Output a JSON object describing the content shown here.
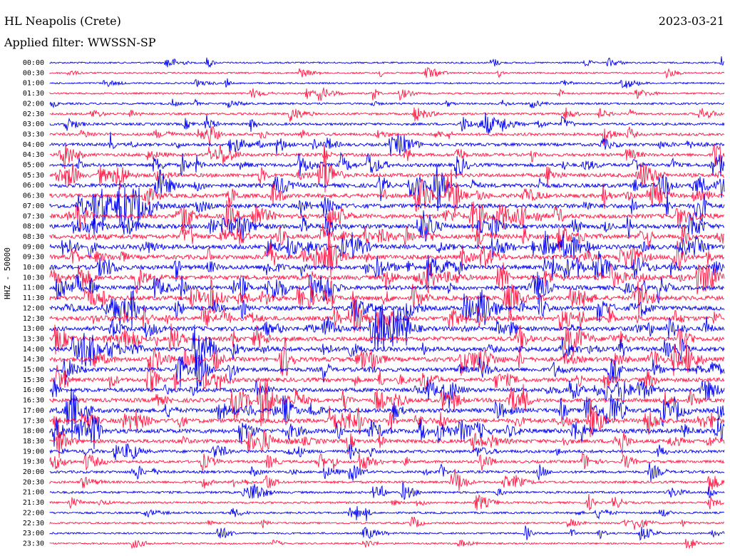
{
  "header": {
    "station": "HL Neapolis (Crete)",
    "date": "2023-03-21",
    "filter": "Applied filter: WWSSN-SP"
  },
  "colors": {
    "trace_a": "#0000ee",
    "trace_b": "#ff1744",
    "baseline": "#0000ee"
  },
  "chart_data": {
    "type": "line",
    "title": "HL Neapolis (Crete)",
    "subtitle": "Applied filter: WWSSN-SP",
    "ylabel": "HHZ - 50000",
    "xlabel": "",
    "date": "2023-03-21",
    "grid": false,
    "legend": "none",
    "row_interval_minutes": 30,
    "series": [
      {
        "values": [],
        "color": "#0000ee"
      },
      {
        "values": [],
        "color": "#ff1744"
      }
    ],
    "ytick_labels": [
      "00:00",
      "00:30",
      "01:00",
      "01:30",
      "02:00",
      "02:30",
      "03:00",
      "03:30",
      "04:00",
      "04:30",
      "05:00",
      "05:30",
      "06:00",
      "06:30",
      "07:00",
      "07:30",
      "08:00",
      "08:30",
      "09:00",
      "09:30",
      "10:00",
      "10:30",
      "11:00",
      "11:30",
      "12:00",
      "12:30",
      "13:00",
      "13:30",
      "14:00",
      "14:30",
      "15:00",
      "15:30",
      "16:00",
      "16:30",
      "17:00",
      "17:30",
      "18:00",
      "18:30",
      "19:00",
      "19:30",
      "20:00",
      "20:30",
      "21:00",
      "21:30",
      "22:00",
      "22:30",
      "23:00",
      "23:30"
    ],
    "activity_level": [
      0.15,
      0.15,
      0.15,
      0.2,
      0.25,
      0.3,
      0.4,
      0.5,
      0.6,
      0.6,
      0.7,
      0.8,
      0.9,
      0.9,
      1.0,
      1.0,
      1.0,
      1.0,
      1.0,
      1.0,
      1.0,
      1.0,
      1.0,
      1.0,
      1.0,
      1.0,
      1.0,
      1.0,
      1.0,
      1.0,
      0.9,
      0.9,
      0.9,
      0.9,
      1.0,
      1.0,
      1.0,
      0.8,
      0.6,
      0.5,
      0.45,
      0.4,
      0.35,
      0.3,
      0.25,
      0.2,
      0.2,
      0.15
    ]
  }
}
